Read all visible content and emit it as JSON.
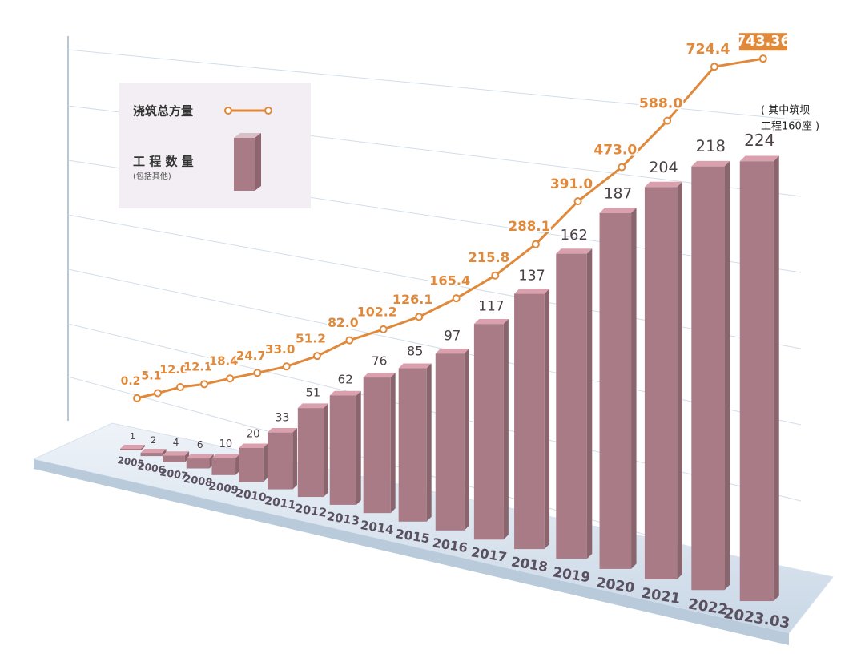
{
  "chart_data": {
    "type": "bar_line",
    "categories": [
      "2005",
      "2006",
      "2007",
      "2008",
      "2009",
      "2010",
      "2011",
      "2012",
      "2013",
      "2014",
      "2015",
      "2016",
      "2017",
      "2018",
      "2019",
      "2020",
      "2021",
      "2022",
      "2023.03"
    ],
    "series": [
      {
        "name": "工 程 数 量",
        "type": "bar",
        "color": "#a87b86",
        "values": [
          1,
          2,
          4,
          6,
          10,
          20,
          33,
          51,
          62,
          76,
          85,
          97,
          117,
          137,
          162,
          187,
          204,
          218,
          224
        ]
      },
      {
        "name": "浇筑总方量",
        "type": "line",
        "color": "#e0893a",
        "values": [
          0.2,
          5.1,
          12.0,
          12.1,
          18.4,
          24.7,
          33.0,
          51.2,
          82.0,
          102.2,
          126.1,
          165.4,
          215.8,
          288.1,
          391.0,
          473.0,
          588.0,
          724.4,
          743.36
        ],
        "value_labels": [
          "0.2",
          "5.1",
          "12.0",
          "12.1",
          "18.4",
          "24.7",
          "33.0",
          "51.2",
          "82.0",
          "102.2",
          "126.1",
          "165.4",
          "215.8",
          "288.1",
          "391.0",
          "473.0",
          "588.0",
          "724.4",
          "743.36"
        ]
      }
    ],
    "legend_note": "(包括其他)",
    "annotation": [
      "( 其中筑坝",
      "工程160座 )"
    ]
  }
}
